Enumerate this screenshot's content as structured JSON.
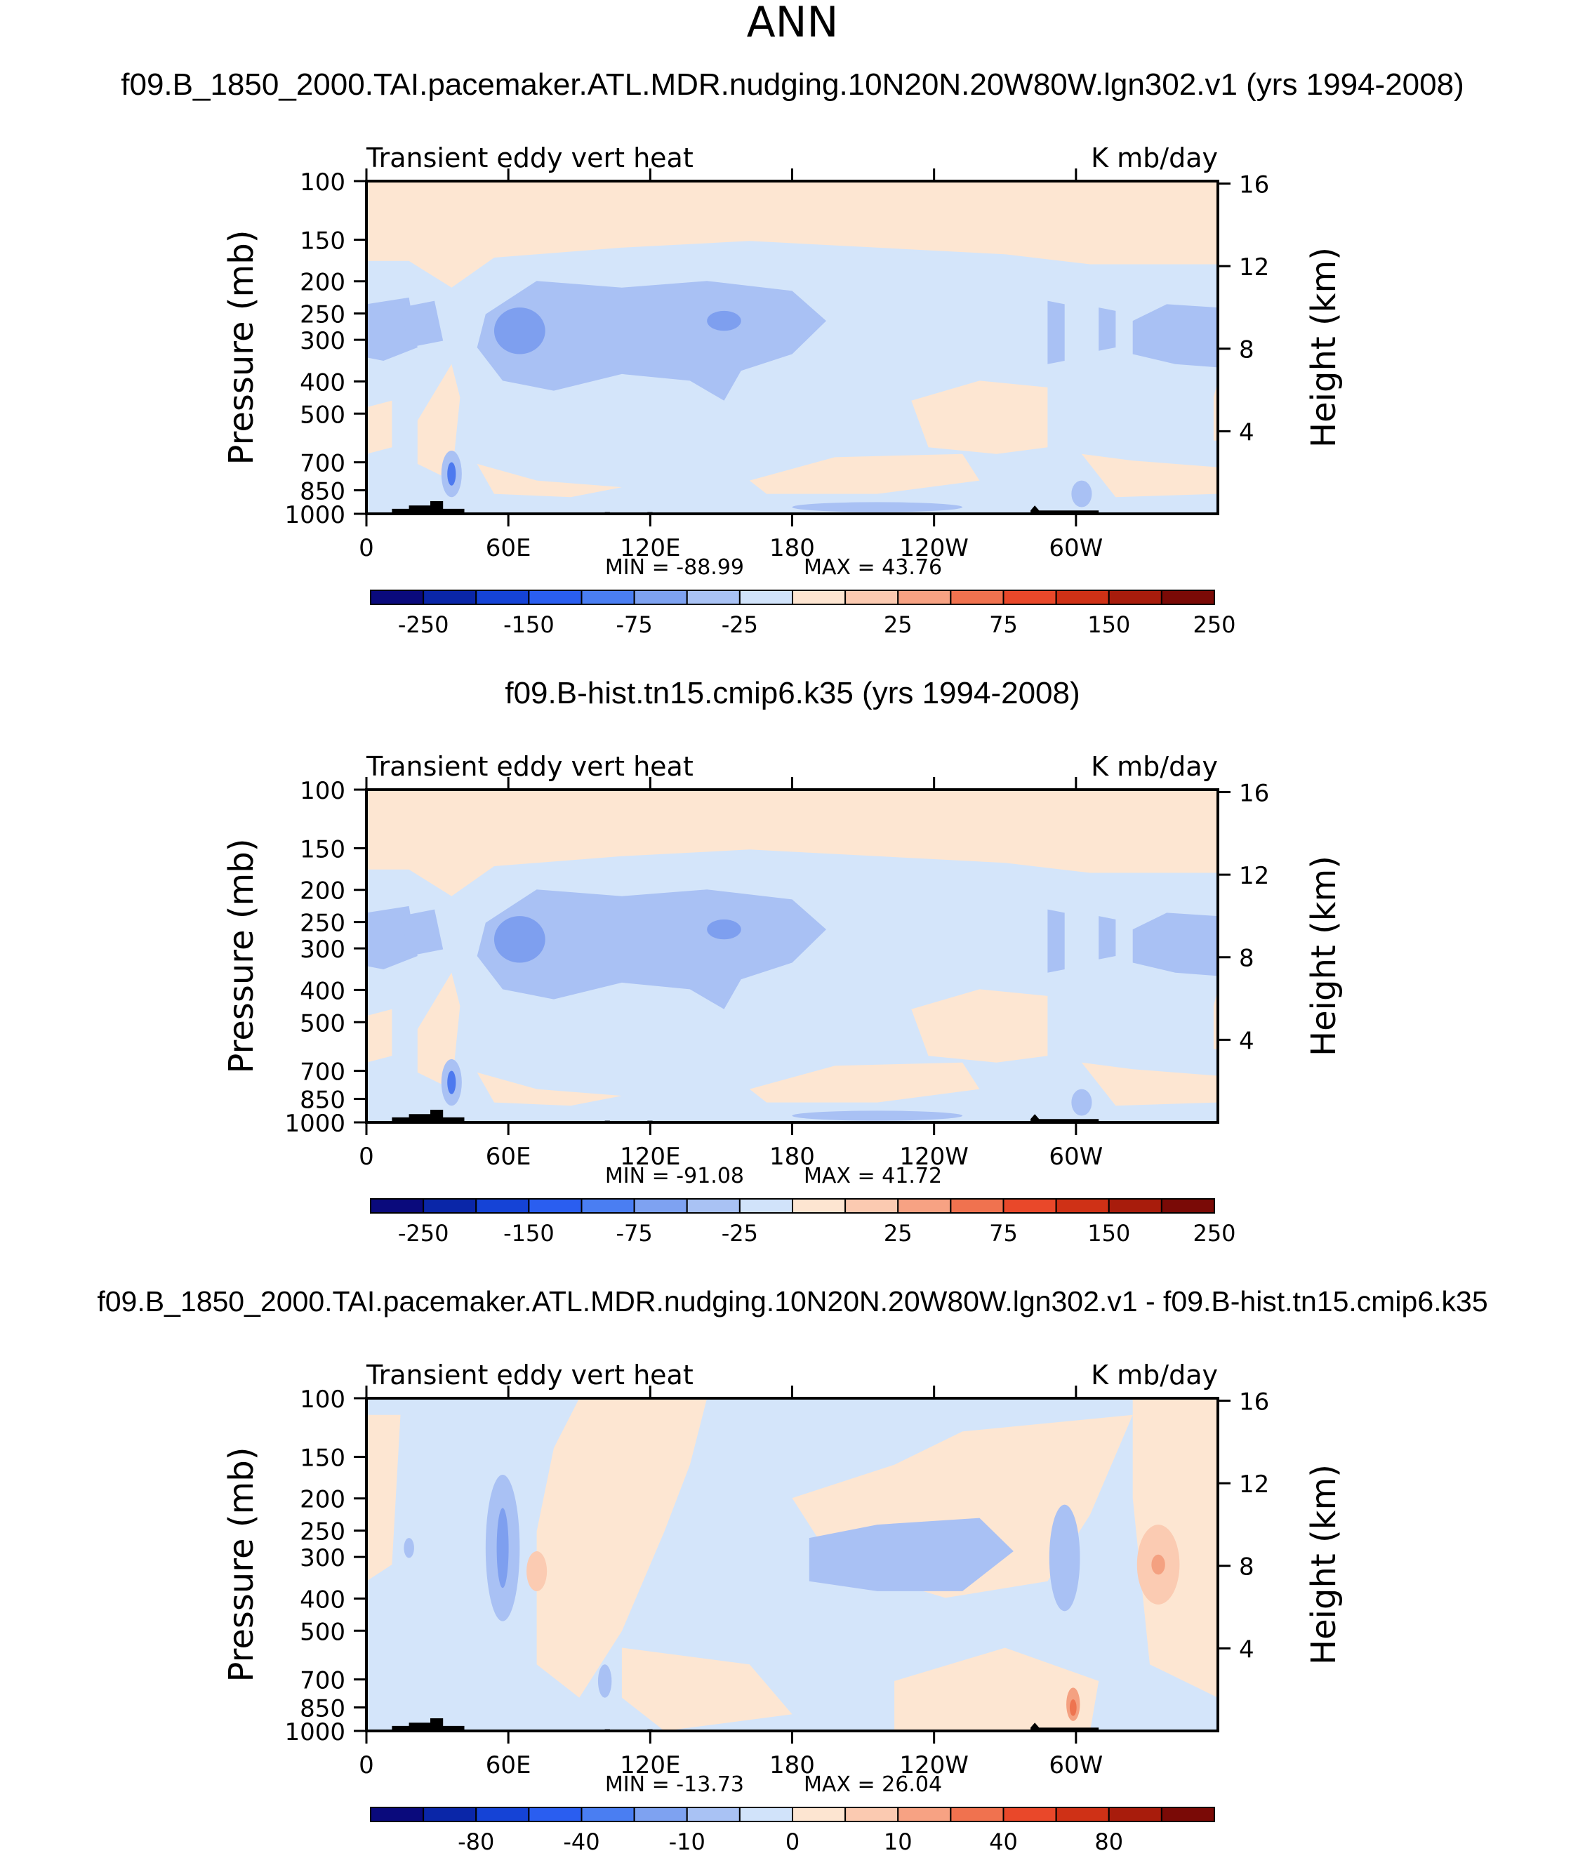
{
  "page": {
    "title": "ANN"
  },
  "chart_data": [
    {
      "type": "heatmap",
      "title": "f09.B_1850_2000.TAI.pacemaker.ATL.MDR.nudging.10N20N.20W80W.lgn302.v1 (yrs 1994-2008)",
      "left_string": "Transient  eddy  vert  heat",
      "right_string": "K  mb/day",
      "ylabel": "Pressure  (mb)",
      "ylabel_right": "Height  (km)",
      "yticks": [
        "100",
        "150",
        "200",
        "250",
        "300",
        "400",
        "500",
        "700",
        "850",
        "1000"
      ],
      "yticks_right": [
        "16",
        "12",
        "8",
        "4"
      ],
      "xticks": [
        "0",
        "60E",
        "120E",
        "180",
        "120W",
        "60W"
      ],
      "min_label": "MIN  =  -88.99",
      "max_label": "MAX  =    43.76",
      "colorbar_labels": [
        "-250",
        "-150",
        "-75",
        "-25",
        "25",
        "75",
        "150",
        "250"
      ]
    },
    {
      "type": "heatmap",
      "title": "f09.B-hist.tn15.cmip6.k35 (yrs 1994-2008)",
      "left_string": "Transient  eddy  vert  heat",
      "right_string": "K  mb/day",
      "ylabel": "Pressure  (mb)",
      "ylabel_right": "Height  (km)",
      "yticks": [
        "100",
        "150",
        "200",
        "250",
        "300",
        "400",
        "500",
        "700",
        "850",
        "1000"
      ],
      "yticks_right": [
        "16",
        "12",
        "8",
        "4"
      ],
      "xticks": [
        "0",
        "60E",
        "120E",
        "180",
        "120W",
        "60W"
      ],
      "min_label": "MIN  =  -91.08",
      "max_label": "MAX  =    41.72",
      "colorbar_labels": [
        "-250",
        "-150",
        "-75",
        "-25",
        "25",
        "75",
        "150",
        "250"
      ]
    },
    {
      "type": "heatmap",
      "title": "f09.B_1850_2000.TAI.pacemaker.ATL.MDR.nudging.10N20N.20W80W.lgn302.v1 - f09.B-hist.tn15.cmip6.k35",
      "left_string": "Transient  eddy  vert  heat",
      "right_string": "K  mb/day",
      "ylabel": "Pressure  (mb)",
      "ylabel_right": "Height  (km)",
      "yticks": [
        "100",
        "150",
        "200",
        "250",
        "300",
        "400",
        "500",
        "700",
        "850",
        "1000"
      ],
      "yticks_right": [
        "16",
        "12",
        "8",
        "4"
      ],
      "xticks": [
        "0",
        "60E",
        "120E",
        "180",
        "120W",
        "60W"
      ],
      "min_label": "MIN  =  -13.73",
      "max_label": "MAX  =    26.04",
      "colorbar_labels": [
        "-80",
        "-40",
        "-10",
        "0",
        "10",
        "40",
        "80"
      ]
    }
  ],
  "colors": {
    "colorbar": [
      "#0a0a7c",
      "#0a26a8",
      "#1543d6",
      "#2a5ef0",
      "#4a7ef2",
      "#7ea2f1",
      "#a9c2f4",
      "#d1e3fa",
      "#fde5d1",
      "#fbcab1",
      "#f7a283",
      "#f0724f",
      "#e9482a",
      "#cf3116",
      "#a81c0c",
      "#7a0a06"
    ],
    "neg_light": "#d4e5fa",
    "neg_mid": "#a9c1f4",
    "neg_strong": "#7e9fef",
    "neg_deep": "#4d79ef",
    "pos_light": "#fde6d2",
    "pos_mid": "#fbcbb2",
    "pos_strong": "#f4a181",
    "pos_deep": "#ee7450",
    "land": "#000000"
  }
}
